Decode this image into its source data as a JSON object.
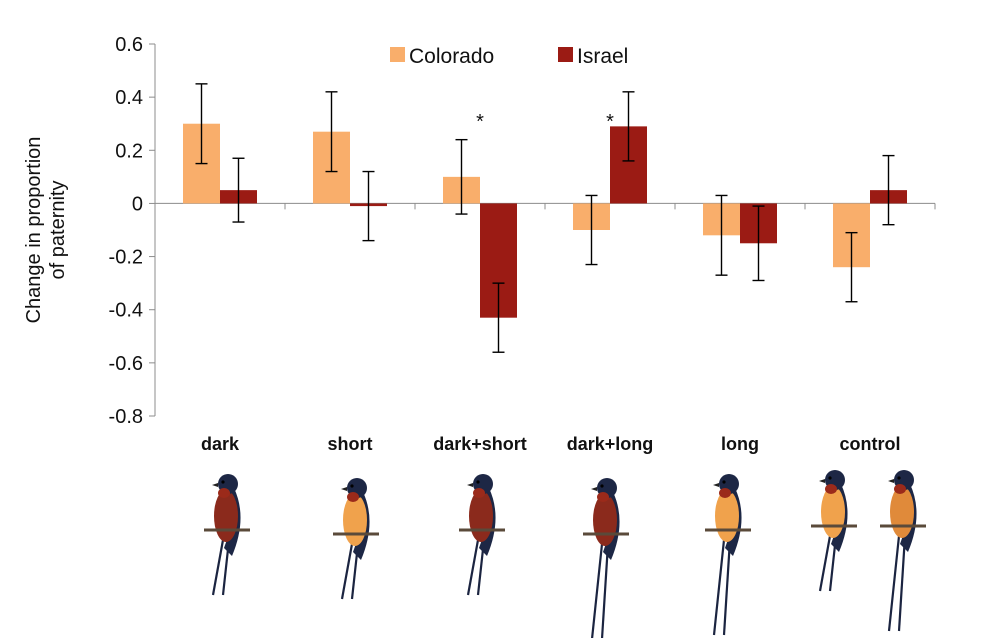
{
  "chart_data": {
    "type": "bar",
    "title": "",
    "xlabel": "",
    "ylabel": "Change in proportion of paternity",
    "ylabel_lines": [
      "Change in proportion",
      "of paternity"
    ],
    "ylim": [
      -0.8,
      0.6
    ],
    "yticks": [
      0.6,
      0.4,
      0.2,
      0,
      -0.2,
      -0.4,
      -0.6,
      -0.8
    ],
    "ytick_labels": [
      "0.6",
      "0.4",
      "0.2",
      "0",
      "-0.2",
      "-0.4",
      "-0.6",
      "-0.8"
    ],
    "categories": [
      "dark",
      "short",
      "dark+short",
      "dark+long",
      "long",
      "control"
    ],
    "series": [
      {
        "name": "Colorado",
        "color": "#F9AE6B",
        "values": [
          0.3,
          0.27,
          0.1,
          -0.1,
          -0.12,
          -0.24
        ],
        "error": [
          0.15,
          0.15,
          0.14,
          0.13,
          0.15,
          0.13
        ]
      },
      {
        "name": "Israel",
        "color": "#9B1B14",
        "values": [
          0.05,
          -0.01,
          -0.43,
          0.29,
          -0.15,
          0.05
        ],
        "error": [
          0.12,
          0.13,
          0.13,
          0.13,
          0.14,
          0.13
        ]
      }
    ],
    "significance": [
      {
        "category": "dark+short",
        "label": "*"
      },
      {
        "category": "dark+long",
        "label": "*"
      }
    ],
    "legend_position": "top-center",
    "grid": false,
    "category_images": [
      {
        "category": "dark",
        "subject": "dark-breasted short-tailed swallow"
      },
      {
        "category": "short",
        "subject": "pale-breasted short-tailed swallow"
      },
      {
        "category": "dark+short",
        "subject": "dark-breasted short-tailed swallow"
      },
      {
        "category": "dark+long",
        "subject": "dark-breasted long-tailed swallow"
      },
      {
        "category": "long",
        "subject": "pale-breasted long-tailed swallow"
      },
      {
        "category": "control",
        "subject": "two control swallows"
      }
    ]
  }
}
